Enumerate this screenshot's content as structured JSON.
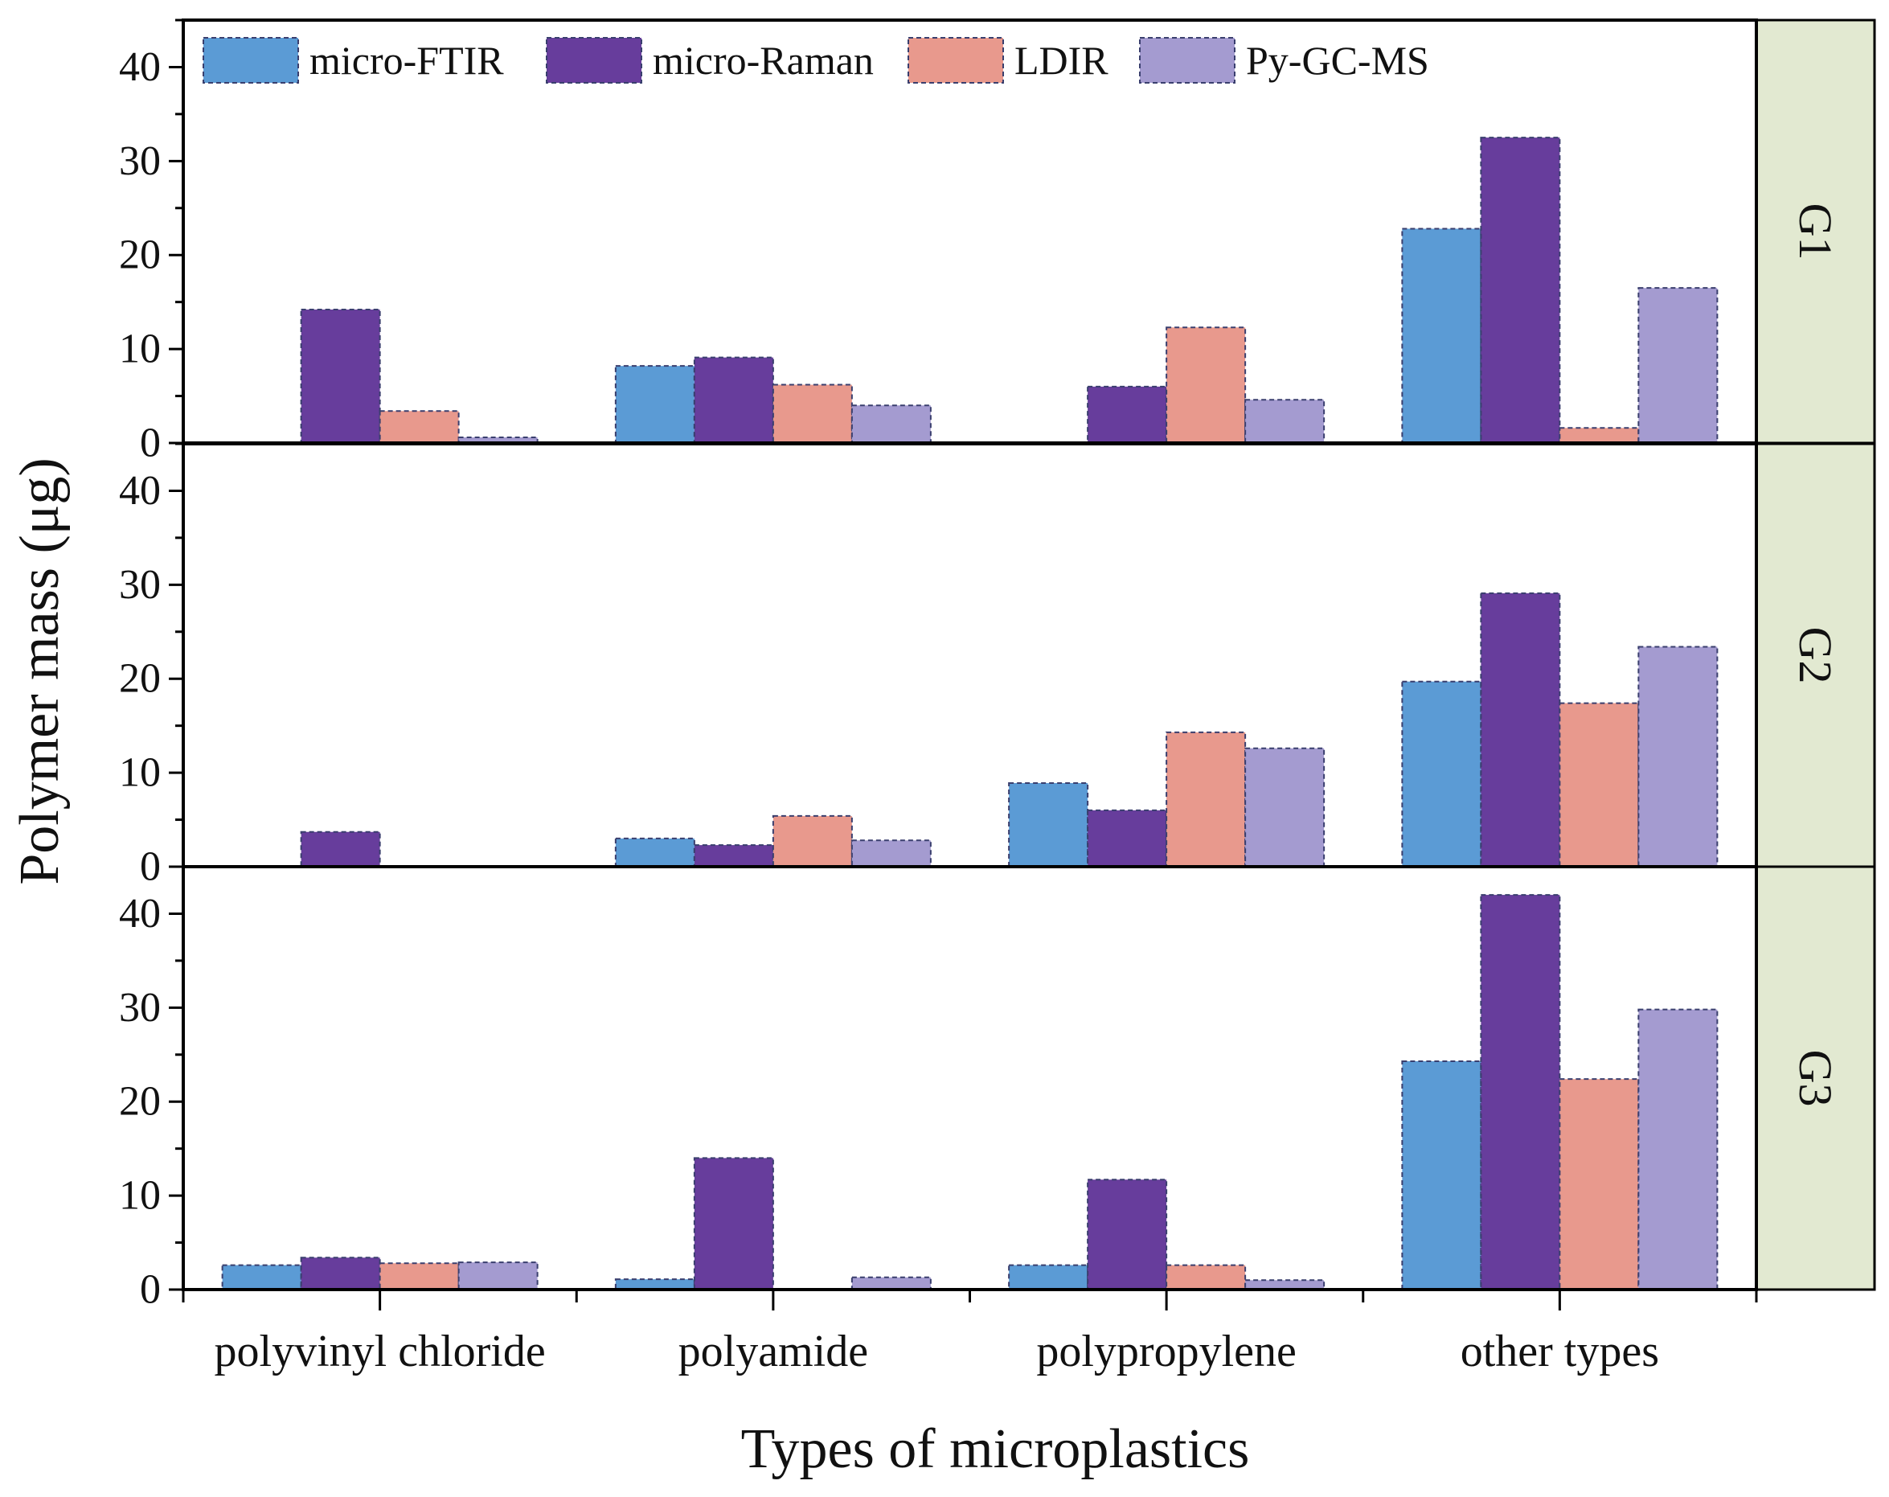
{
  "chart_data": {
    "type": "bar",
    "xlabel": "Types of microplastics",
    "ylabel": "Polymer mass (μg)",
    "ylim": [
      0,
      45
    ],
    "yticks": [
      0,
      10,
      20,
      30,
      40
    ],
    "categories": [
      "polyvinyl chloride",
      "polyamide",
      "polypropylene",
      "other types"
    ],
    "legend_position": "top-left",
    "series": [
      {
        "name": "micro-FTIR",
        "color": "#5b9bd5"
      },
      {
        "name": "micro-Raman",
        "color": "#673d9c"
      },
      {
        "name": "LDIR",
        "color": "#e8998d"
      },
      {
        "name": "Py-GC-MS",
        "color": "#a49bd0"
      }
    ],
    "strip_color": "#e2e9d1",
    "panels": [
      {
        "label": "G1",
        "values": {
          "micro-FTIR": [
            0,
            8.2,
            0,
            22.8
          ],
          "micro-Raman": [
            14.2,
            9.1,
            6.0,
            32.5
          ],
          "LDIR": [
            3.4,
            6.2,
            12.3,
            1.6
          ],
          "Py-GC-MS": [
            0.6,
            4.0,
            4.6,
            16.5
          ]
        }
      },
      {
        "label": "G2",
        "values": {
          "micro-FTIR": [
            0,
            3.0,
            8.9,
            19.7
          ],
          "micro-Raman": [
            3.7,
            2.3,
            6.0,
            29.1
          ],
          "LDIR": [
            0,
            5.4,
            14.3,
            17.4
          ],
          "Py-GC-MS": [
            0,
            2.8,
            12.6,
            23.4
          ]
        }
      },
      {
        "label": "G3",
        "values": {
          "micro-FTIR": [
            2.6,
            1.1,
            2.6,
            24.3
          ],
          "micro-Raman": [
            3.4,
            14.0,
            11.7,
            42.0
          ],
          "LDIR": [
            2.8,
            0,
            2.6,
            22.4
          ],
          "Py-GC-MS": [
            2.9,
            1.3,
            1.0,
            29.8
          ]
        }
      }
    ]
  }
}
